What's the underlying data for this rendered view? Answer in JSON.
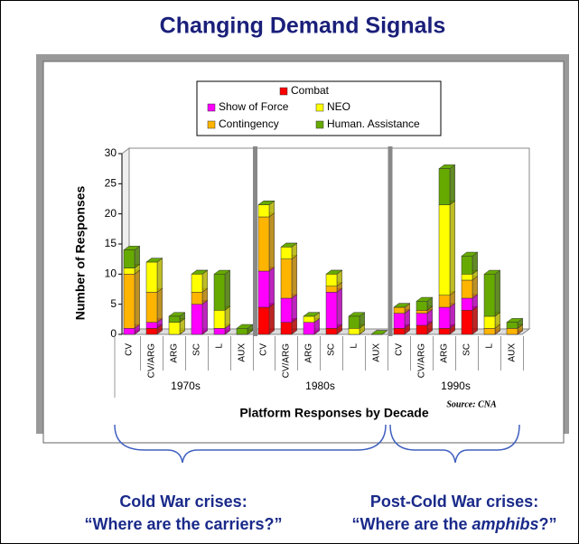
{
  "chart_data": {
    "type": "bar3d_stacked",
    "title": "Changing Demand Signals",
    "xlabel": "Platform Responses by Decade",
    "ylabel": "Number of Responses",
    "source": "Source: CNA",
    "categories": [
      "CV",
      "CV/ARG",
      "ARG",
      "SC",
      "L",
      "AUX",
      "CV",
      "CV/ARG",
      "ARG",
      "SC",
      "L",
      "AUX",
      "CV",
      "CV/ARG",
      "ARG",
      "SC",
      "L",
      "AUX"
    ],
    "groups": [
      "1970s",
      "1980s",
      "1990s"
    ],
    "ylim": [
      0,
      30
    ],
    "yticks": [
      0,
      5,
      10,
      15,
      20,
      25,
      30
    ],
    "series": [
      {
        "name": "Combat",
        "color": "#ff0000",
        "values": [
          0,
          1,
          0,
          0,
          0,
          0,
          4.5,
          2,
          0,
          1,
          0,
          0,
          1,
          1.5,
          1,
          4,
          0,
          0
        ]
      },
      {
        "name": "Show of Force",
        "color": "#ff00ff",
        "values": [
          1,
          1,
          0,
          5,
          1,
          0,
          6,
          4,
          2,
          6,
          0,
          0,
          2.5,
          2,
          3.5,
          2,
          0,
          0
        ]
      },
      {
        "name": "Contingency",
        "color": "#ffb400",
        "values": [
          9,
          5,
          0,
          2,
          0,
          0,
          9,
          6.5,
          0,
          1,
          0,
          0,
          1,
          0.5,
          2,
          3,
          1,
          1
        ]
      },
      {
        "name": "NEO",
        "color": "#ffff00",
        "values": [
          1,
          5,
          2,
          3,
          3,
          0,
          2,
          2,
          1,
          2,
          1,
          0,
          0,
          0,
          15,
          1,
          2,
          0
        ]
      },
      {
        "name": "Human. Assistance",
        "color": "#66aa00",
        "values": [
          3,
          0,
          1,
          0,
          6,
          1,
          0,
          0,
          0,
          0,
          2,
          0,
          0,
          1.5,
          6,
          3,
          7,
          1
        ]
      }
    ]
  },
  "annotations": {
    "left": {
      "line1": "Cold War crises:",
      "line2": "“Where are the carriers?”"
    },
    "right": {
      "line1": "Post-Cold War crises:",
      "line2a": "“Where are the ",
      "line2b": "amphibs",
      "line2c": "?”"
    }
  }
}
